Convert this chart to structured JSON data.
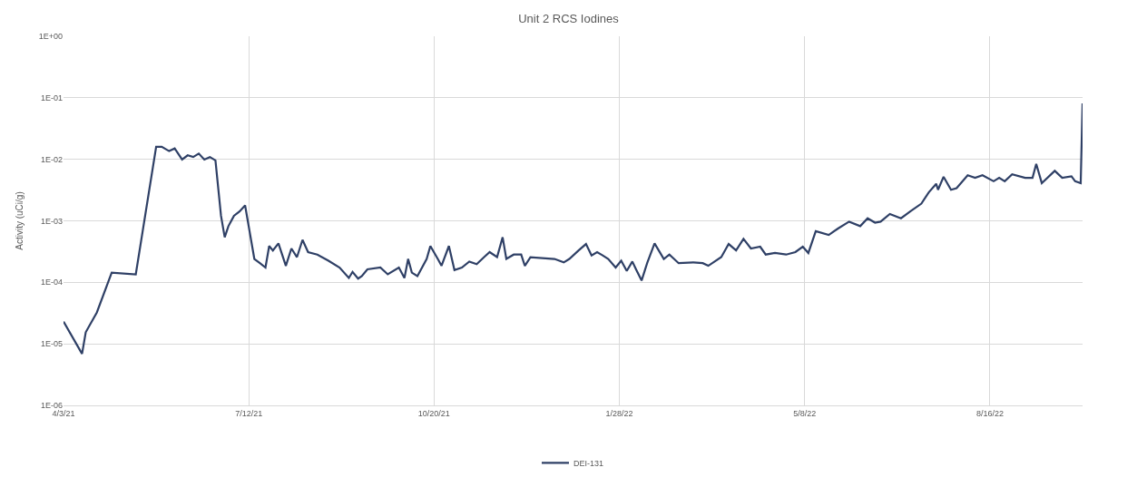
{
  "chart_data": {
    "type": "line",
    "title": "Unit 2 RCS Iodines",
    "ylabel": "Activity (uCi/g)",
    "x": [
      "2021-04-03",
      "2021-04-13",
      "2021-04-15",
      "2021-04-21",
      "2021-04-29",
      "2021-05-12",
      "2021-05-23",
      "2021-05-26",
      "2021-05-30",
      "2021-06-02",
      "2021-06-06",
      "2021-06-09",
      "2021-06-12",
      "2021-06-15",
      "2021-06-18",
      "2021-06-21",
      "2021-06-24",
      "2021-06-27",
      "2021-06-29",
      "2021-07-01",
      "2021-07-04",
      "2021-07-07",
      "2021-07-10",
      "2021-07-15",
      "2021-07-18",
      "2021-07-21",
      "2021-07-23",
      "2021-07-25",
      "2021-07-28",
      "2021-08-01",
      "2021-08-04",
      "2021-08-07",
      "2021-08-10",
      "2021-08-13",
      "2021-08-18",
      "2021-08-24",
      "2021-08-30",
      "2021-09-04",
      "2021-09-06",
      "2021-09-09",
      "2021-09-11",
      "2021-09-14",
      "2021-09-21",
      "2021-09-25",
      "2021-10-01",
      "2021-10-04",
      "2021-10-06",
      "2021-10-08",
      "2021-10-11",
      "2021-10-16",
      "2021-10-18",
      "2021-10-22",
      "2021-10-24",
      "2021-10-28",
      "2021-10-31",
      "2021-11-04",
      "2021-11-08",
      "2021-11-12",
      "2021-11-16",
      "2021-11-19",
      "2021-11-23",
      "2021-11-26",
      "2021-11-28",
      "2021-12-02",
      "2021-12-06",
      "2021-12-08",
      "2021-12-11",
      "2021-12-24",
      "2021-12-29",
      "2022-01-01",
      "2022-01-06",
      "2022-01-10",
      "2022-01-13",
      "2022-01-16",
      "2022-01-19",
      "2022-01-22",
      "2022-01-26",
      "2022-01-29",
      "2022-02-01",
      "2022-02-04",
      "2022-02-06",
      "2022-02-09",
      "2022-02-12",
      "2022-02-16",
      "2022-02-21",
      "2022-02-24",
      "2022-03-01",
      "2022-03-09",
      "2022-03-14",
      "2022-03-17",
      "2022-03-24",
      "2022-03-28",
      "2022-04-01",
      "2022-04-05",
      "2022-04-09",
      "2022-04-14",
      "2022-04-17",
      "2022-04-22",
      "2022-04-28",
      "2022-05-03",
      "2022-05-07",
      "2022-05-10",
      "2022-05-14",
      "2022-05-21",
      "2022-05-26",
      "2022-06-01",
      "2022-06-07",
      "2022-06-11",
      "2022-06-15",
      "2022-06-18",
      "2022-06-23",
      "2022-06-29",
      "2022-07-04",
      "2022-07-10",
      "2022-07-14",
      "2022-07-18",
      "2022-07-19",
      "2022-07-22",
      "2022-07-26",
      "2022-07-29",
      "2022-08-04",
      "2022-08-08",
      "2022-08-12",
      "2022-08-18",
      "2022-08-21",
      "2022-08-24",
      "2022-08-28",
      "2022-09-04",
      "2022-09-08",
      "2022-09-10",
      "2022-09-13",
      "2022-09-20",
      "2022-09-24",
      "2022-09-29",
      "2022-10-01",
      "2022-10-04",
      "2022-10-05"
    ],
    "series": [
      {
        "name": "DEI-131",
        "color": "#2f4066",
        "values": [
          2.3e-05,
          6.9e-06,
          1.55e-05,
          3.25e-05,
          0.000144,
          0.000135,
          0.016,
          0.016,
          0.0136,
          0.015,
          0.0099,
          0.0116,
          0.0109,
          0.0124,
          0.0099,
          0.0109,
          0.0096,
          0.00121,
          0.00054,
          0.00082,
          0.00121,
          0.00142,
          0.00178,
          0.00024,
          0.000205,
          0.000174,
          0.00039,
          0.00033,
          0.00043,
          0.000186,
          0.000355,
          0.000257,
          0.00049,
          0.00031,
          0.000283,
          0.000225,
          0.000174,
          0.000118,
          0.000148,
          0.000115,
          0.000126,
          0.000163,
          0.000174,
          0.000135,
          0.000174,
          0.000118,
          0.00024,
          0.000144,
          0.000126,
          0.00024,
          0.00039,
          0.00024,
          0.000186,
          0.00039,
          0.000158,
          0.000174,
          0.000218,
          0.000198,
          0.000257,
          0.00031,
          0.000257,
          0.00054,
          0.00024,
          0.000283,
          0.000283,
          0.000186,
          0.000257,
          0.00024,
          0.000211,
          0.00024,
          0.00033,
          0.00042,
          0.000274,
          0.00031,
          0.000274,
          0.00024,
          0.000174,
          0.000225,
          0.000153,
          0.000218,
          0.000163,
          0.000107,
          0.000205,
          0.00043,
          0.00024,
          0.000283,
          0.000205,
          0.000211,
          0.000205,
          0.000186,
          0.000257,
          0.00042,
          0.00033,
          0.00051,
          0.000355,
          0.00038,
          0.000283,
          0.0003,
          0.000283,
          0.00031,
          0.00038,
          0.0003,
          0.00068,
          0.00059,
          0.00075,
          0.00097,
          0.00082,
          0.0011,
          0.000935,
          0.00097,
          0.00129,
          0.0011,
          0.00142,
          0.0019,
          0.0029,
          0.004,
          0.0032,
          0.0052,
          0.0032,
          0.0034,
          0.0055,
          0.005,
          0.0055,
          0.0044,
          0.005,
          0.0044,
          0.0057,
          0.005,
          0.005,
          0.0084,
          0.0041,
          0.0065,
          0.005,
          0.0053,
          0.0044,
          0.0041,
          0.081
        ]
      }
    ],
    "log": "y",
    "ylim": [
      1e-06,
      1
    ],
    "yticks": [
      {
        "value": 1e-06,
        "label": "1E-06"
      },
      {
        "value": 1e-05,
        "label": "1E-05"
      },
      {
        "value": 0.0001,
        "label": "1E-04"
      },
      {
        "value": 0.001,
        "label": "1E-03"
      },
      {
        "value": 0.01,
        "label": "1E-02"
      },
      {
        "value": 0.1,
        "label": "1E-01"
      },
      {
        "value": 1,
        "label": "1E+00"
      }
    ],
    "xlim": [
      "2021-04-03",
      "2022-10-05"
    ],
    "xticks": [
      {
        "value": "2021-04-03",
        "label": "4/3/21"
      },
      {
        "value": "2021-07-12",
        "label": "7/12/21"
      },
      {
        "value": "2021-10-20",
        "label": "10/20/21"
      },
      {
        "value": "2022-01-28",
        "label": "1/28/22"
      },
      {
        "value": "2022-05-08",
        "label": "5/8/22"
      },
      {
        "value": "2022-08-16",
        "label": "8/16/22"
      }
    ],
    "grid": true,
    "legend": "bottom",
    "line_style": "solid",
    "marker": "none"
  }
}
